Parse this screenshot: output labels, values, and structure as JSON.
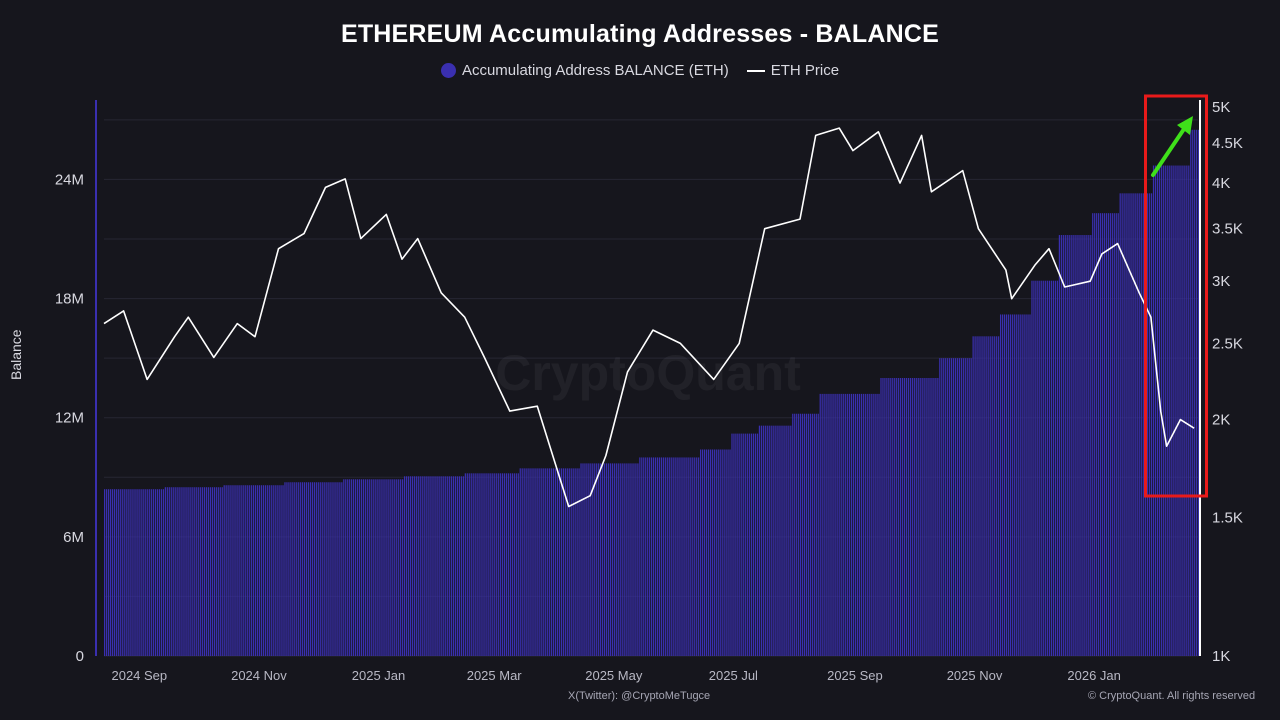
{
  "chart_data": {
    "type": "bar",
    "title": "ETHEREUM Accumulating Addresses - BALANCE",
    "ylabel": "Balance",
    "x_tick_labels": [
      "2024 Sep",
      "2024 Nov",
      "2025 Jan",
      "2025 Mar",
      "2025 May",
      "2025 Jul",
      "2025 Sep",
      "2025 Nov",
      "2026 Jan"
    ],
    "y_left": {
      "ticks": [
        0,
        6000000,
        12000000,
        18000000,
        24000000
      ],
      "tick_labels": [
        "0",
        "6M",
        "12M",
        "18M",
        "24M"
      ],
      "lim": [
        0,
        28000000
      ]
    },
    "y_right": {
      "scale": "log",
      "ticks": [
        1000,
        1500,
        2000,
        2500,
        3000,
        3500,
        4000,
        4500,
        5000
      ],
      "tick_labels": [
        "1K",
        "1.5K",
        "2K",
        "2.5K",
        "3K",
        "3.5K",
        "4K",
        "4.5K",
        "5K"
      ],
      "lim": [
        1000,
        5000
      ]
    },
    "grid": true,
    "legend_position": "top-center",
    "series": [
      {
        "name": "Accumulating Address BALANCE (ETH)",
        "type": "bar",
        "axis": "left",
        "color": "#3a2fb0",
        "points": [
          [
            "2024-08-15",
            8400000
          ],
          [
            "2024-09-15",
            8500000
          ],
          [
            "2024-10-15",
            8600000
          ],
          [
            "2024-11-15",
            8750000
          ],
          [
            "2024-12-15",
            8900000
          ],
          [
            "2025-01-15",
            9050000
          ],
          [
            "2025-02-15",
            9200000
          ],
          [
            "2025-03-15",
            9450000
          ],
          [
            "2025-04-15",
            9700000
          ],
          [
            "2025-05-15",
            10000000
          ],
          [
            "2025-06-15",
            10400000
          ],
          [
            "2025-07-01",
            11200000
          ],
          [
            "2025-07-15",
            11600000
          ],
          [
            "2025-08-01",
            12200000
          ],
          [
            "2025-08-15",
            13200000
          ],
          [
            "2025-09-15",
            14000000
          ],
          [
            "2025-10-15",
            15000000
          ],
          [
            "2025-11-01",
            16100000
          ],
          [
            "2025-11-15",
            17200000
          ],
          [
            "2025-12-01",
            18900000
          ],
          [
            "2025-12-15",
            21200000
          ],
          [
            "2026-01-01",
            22300000
          ],
          [
            "2026-01-15",
            23300000
          ],
          [
            "2026-02-01",
            24700000
          ],
          [
            "2026-02-20",
            26500000
          ]
        ]
      },
      {
        "name": "ETH Price",
        "type": "line",
        "axis": "right",
        "color": "#ffffff",
        "points": [
          [
            "2024-08-15",
            2650
          ],
          [
            "2024-08-25",
            2750
          ],
          [
            "2024-09-06",
            2250
          ],
          [
            "2024-09-20",
            2550
          ],
          [
            "2024-09-27",
            2700
          ],
          [
            "2024-10-10",
            2400
          ],
          [
            "2024-10-22",
            2650
          ],
          [
            "2024-10-31",
            2550
          ],
          [
            "2024-11-12",
            3300
          ],
          [
            "2024-11-25",
            3450
          ],
          [
            "2024-12-06",
            3950
          ],
          [
            "2024-12-16",
            4050
          ],
          [
            "2024-12-24",
            3400
          ],
          [
            "2025-01-06",
            3650
          ],
          [
            "2025-01-14",
            3200
          ],
          [
            "2025-01-22",
            3400
          ],
          [
            "2025-02-03",
            2900
          ],
          [
            "2025-02-15",
            2700
          ],
          [
            "2025-02-25",
            2400
          ],
          [
            "2025-03-10",
            2050
          ],
          [
            "2025-03-24",
            2080
          ],
          [
            "2025-04-09",
            1550
          ],
          [
            "2025-04-20",
            1600
          ],
          [
            "2025-04-28",
            1800
          ],
          [
            "2025-05-09",
            2300
          ],
          [
            "2025-05-22",
            2600
          ],
          [
            "2025-06-05",
            2500
          ],
          [
            "2025-06-22",
            2250
          ],
          [
            "2025-07-05",
            2500
          ],
          [
            "2025-07-18",
            3500
          ],
          [
            "2025-08-05",
            3600
          ],
          [
            "2025-08-13",
            4600
          ],
          [
            "2025-08-25",
            4700
          ],
          [
            "2025-09-01",
            4400
          ],
          [
            "2025-09-14",
            4650
          ],
          [
            "2025-09-25",
            4000
          ],
          [
            "2025-10-06",
            4600
          ],
          [
            "2025-10-11",
            3900
          ],
          [
            "2025-10-27",
            4150
          ],
          [
            "2025-11-04",
            3500
          ],
          [
            "2025-11-18",
            3100
          ],
          [
            "2025-11-21",
            2850
          ],
          [
            "2025-12-03",
            3150
          ],
          [
            "2025-12-10",
            3300
          ],
          [
            "2025-12-18",
            2950
          ],
          [
            "2025-12-31",
            3000
          ],
          [
            "2026-01-06",
            3250
          ],
          [
            "2026-01-14",
            3350
          ],
          [
            "2026-01-25",
            2900
          ],
          [
            "2026-01-31",
            2700
          ],
          [
            "2026-02-05",
            2050
          ],
          [
            "2026-02-08",
            1850
          ],
          [
            "2026-02-15",
            2000
          ],
          [
            "2026-02-22",
            1950
          ]
        ]
      }
    ]
  },
  "annotations": {
    "highlight_box_color": "#e81a1a",
    "arrow_color": "#3fe01a"
  },
  "watermark": "CryptoQuant",
  "footer": {
    "credit": "X(Twitter): @CryptoMeTugce",
    "copyright": "© CryptoQuant. All rights reserved"
  }
}
